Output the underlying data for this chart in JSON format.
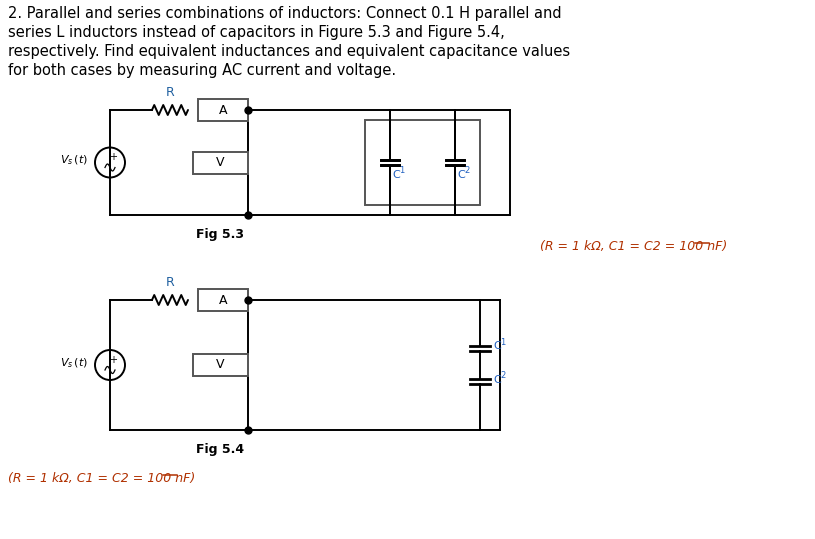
{
  "background_color": "#ffffff",
  "text_color": "#000000",
  "title_lines": [
    "2. Parallel and series combinations of inductors: Connect 0.1 H parallel and",
    "series L inductors instead of capacitors in Figure 5.3 and Figure 5.4,",
    "respectively. Find equivalent inductances and equivalent capacitance values",
    "for both cases by measuring AC current and voltage."
  ],
  "fig53_label": "Fig 5.3",
  "fig54_label": "Fig 5.4",
  "param_label_right": "(R = 1 kΩ, C1 = C2 = 100 nF)",
  "param_label_bottom": "(R = 1 kΩ, C1 = C2 = 100 nF)"
}
